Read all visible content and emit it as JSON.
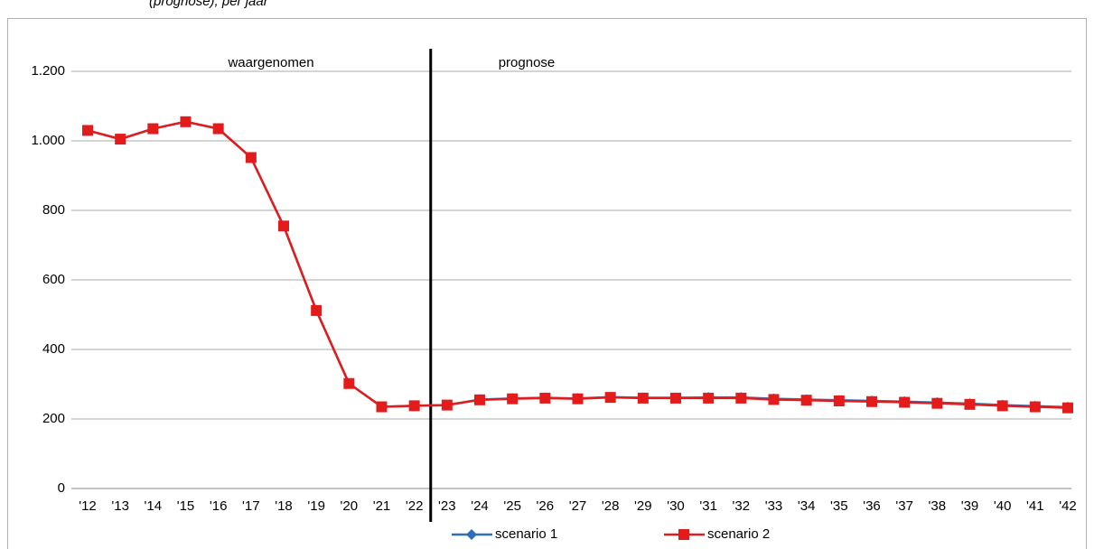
{
  "header": {
    "caption": "(prognose), per jaar"
  },
  "chart_data": {
    "type": "line",
    "annotations": [
      "waargenomen",
      "prognose"
    ],
    "categories": [
      "'12",
      "'13",
      "'14",
      "'15",
      "'16",
      "'17",
      "'18",
      "'19",
      "'20",
      "'21",
      "'22",
      "'23",
      "'24",
      "'25",
      "'26",
      "'27",
      "'28",
      "'29",
      "'30",
      "'31",
      "'32",
      "'33",
      "'34",
      "'35",
      "'36",
      "'37",
      "'38",
      "'39",
      "'40",
      "'41",
      "'42"
    ],
    "series": [
      {
        "name": "scenario 1",
        "color": "#2e6fb5",
        "marker": "diamond",
        "values": [
          1030,
          1005,
          1035,
          1055,
          1035,
          952,
          755,
          512,
          302,
          235,
          238,
          240,
          256,
          259,
          261,
          259,
          263,
          261,
          261,
          262,
          262,
          258,
          256,
          254,
          252,
          250,
          247,
          244,
          240,
          237,
          234
        ]
      },
      {
        "name": "scenario 2",
        "color": "#e31b1b",
        "marker": "square",
        "values": [
          1030,
          1005,
          1035,
          1055,
          1035,
          952,
          755,
          512,
          302,
          235,
          238,
          240,
          255,
          258,
          260,
          258,
          262,
          260,
          260,
          260,
          260,
          256,
          254,
          252,
          250,
          248,
          245,
          242,
          238,
          235,
          232
        ]
      }
    ],
    "ylim": [
      0,
      1200
    ],
    "yticks": [
      0,
      200,
      400,
      600,
      800,
      {
        "value": 1000,
        "label": "1.000"
      },
      {
        "value": 1200,
        "label": "1.200"
      }
    ],
    "grid": true,
    "legend": "bottom"
  }
}
